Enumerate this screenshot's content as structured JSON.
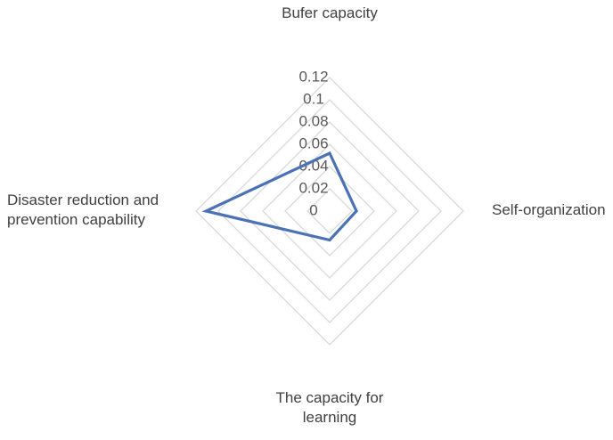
{
  "chart_data": {
    "type": "radar",
    "title": "",
    "axes": [
      "Bufer capacity",
      "Self-organization",
      "The capacity for learning",
      "Disaster reduction and prevention capability"
    ],
    "axis_label_lines": [
      [
        "Bufer capacity"
      ],
      [
        "Self-organization"
      ],
      [
        "The capacity for",
        "learning"
      ],
      [
        "Disaster reduction and",
        "prevention capability"
      ]
    ],
    "ticks": [
      "0",
      "0.02",
      "0.04",
      "0.06",
      "0.08",
      "0.1",
      "0.12"
    ],
    "range": [
      0,
      0.12
    ],
    "grid": true,
    "legend": "none",
    "series": [
      {
        "values": [
          0.052,
          0.024,
          0.026,
          0.111
        ]
      }
    ],
    "colors": {
      "series": "#4a72b5",
      "grid": "#d9d9d9"
    }
  }
}
